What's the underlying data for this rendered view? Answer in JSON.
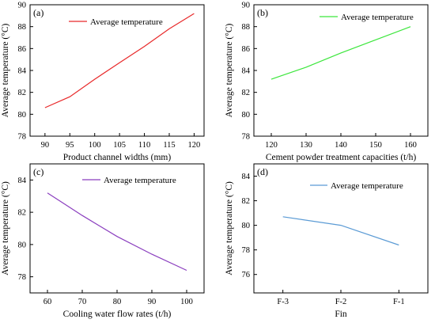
{
  "chart_data": [
    {
      "panel": "(a)",
      "type": "line",
      "xlabel": "Product channel widths (mm)",
      "ylabel": "Average temperature (°C)",
      "xlim": [
        87,
        122
      ],
      "ylim": [
        78,
        90
      ],
      "xticks": [
        90,
        95,
        100,
        105,
        110,
        115,
        120
      ],
      "yticks": [
        78,
        80,
        82,
        84,
        86,
        88,
        90
      ],
      "xtick_labels": [
        "90",
        "95",
        "100",
        "105",
        "110",
        "115",
        "120"
      ],
      "ytick_labels": [
        "78",
        "80",
        "82",
        "84",
        "86",
        "88",
        "90"
      ],
      "grid": false,
      "legend_position": "top-left",
      "series": [
        {
          "name": "Average temperature",
          "color": "#e8292a",
          "x": [
            90,
            95,
            100,
            105,
            110,
            115,
            120
          ],
          "values": [
            80.6,
            81.6,
            83.2,
            84.7,
            86.2,
            87.8,
            89.2
          ]
        }
      ]
    },
    {
      "panel": "(b)",
      "type": "line",
      "xlabel": "Cement powder treatment capacities (t/h)",
      "ylabel": "Average temperature (°C)",
      "xlim": [
        115,
        165
      ],
      "ylim": [
        78,
        90
      ],
      "xticks": [
        120,
        130,
        140,
        150,
        160
      ],
      "yticks": [
        78,
        80,
        82,
        84,
        86,
        88,
        90
      ],
      "xtick_labels": [
        "120",
        "130",
        "140",
        "150",
        "160"
      ],
      "ytick_labels": [
        "78",
        "80",
        "82",
        "84",
        "86",
        "88",
        "90"
      ],
      "grid": false,
      "legend_position": "top-right",
      "series": [
        {
          "name": "Average temperature",
          "color": "#3ce63c",
          "x": [
            120,
            130,
            140,
            150,
            160
          ],
          "values": [
            83.2,
            84.3,
            85.6,
            86.8,
            88.0
          ]
        }
      ]
    },
    {
      "panel": "(c)",
      "type": "line",
      "xlabel": "Cooling water flow rates (t/h)",
      "ylabel": "Average temperature (°C)",
      "xlim": [
        55,
        105
      ],
      "ylim": [
        77,
        85
      ],
      "xticks": [
        60,
        70,
        80,
        90,
        100
      ],
      "yticks": [
        78,
        80,
        82,
        84
      ],
      "xtick_labels": [
        "60",
        "70",
        "80",
        "90",
        "100"
      ],
      "ytick_labels": [
        "78",
        "80",
        "82",
        "84"
      ],
      "grid": false,
      "legend_position": "top-right",
      "series": [
        {
          "name": "Average temperature",
          "color": "#8b3fbf",
          "x": [
            60,
            70,
            80,
            90,
            100
          ],
          "values": [
            83.2,
            81.8,
            80.5,
            79.4,
            78.4
          ]
        }
      ]
    },
    {
      "panel": "(d)",
      "type": "line",
      "xlabel": "Fin",
      "ylabel": "Average temperature (°C)",
      "xlim": [
        -0.5,
        2.5
      ],
      "ylim": [
        74.5,
        85
      ],
      "xticks": [
        0,
        1,
        2
      ],
      "yticks": [
        76,
        78,
        80,
        82,
        84
      ],
      "xtick_labels": [
        "F-3",
        "F-2",
        "F-1"
      ],
      "ytick_labels": [
        "76",
        "78",
        "80",
        "82",
        "84"
      ],
      "grid": false,
      "legend_position": "top-right",
      "series": [
        {
          "name": "Average temperature",
          "color": "#5b9bd5",
          "x": [
            0,
            1,
            2
          ],
          "values": [
            80.7,
            80.0,
            78.4
          ]
        }
      ]
    }
  ]
}
